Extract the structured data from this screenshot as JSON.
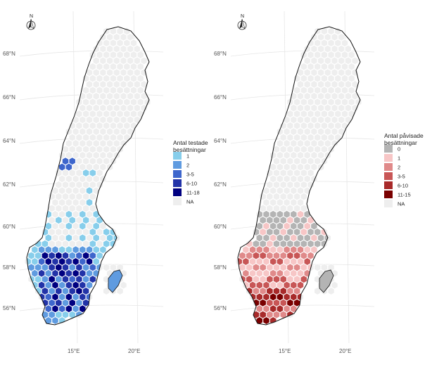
{
  "maps": [
    {
      "id": "tested",
      "legend_title": [
        "Antal testade",
        "besättningar"
      ],
      "legend": [
        {
          "label": "1",
          "color": "#87ceeb"
        },
        {
          "label": "2",
          "color": "#5f9be0"
        },
        {
          "label": "3-5",
          "color": "#3e66cc"
        },
        {
          "label": "6-10",
          "color": "#2233a8"
        },
        {
          "label": "11-18",
          "color": "#000080"
        },
        {
          "label": "NA",
          "color": "#eeeeee"
        }
      ],
      "latitudes": [
        "68°N",
        "66°N",
        "64°N",
        "62°N",
        "60°N",
        "58°N",
        "56°N"
      ],
      "longitudes": [
        "15°E",
        "20°E"
      ],
      "north_label": "N"
    },
    {
      "id": "detected",
      "legend_title": [
        "Antal påvisade",
        "besättningar"
      ],
      "legend": [
        {
          "label": "0",
          "color": "#b4b4b4"
        },
        {
          "label": "1",
          "color": "#f7c6c6"
        },
        {
          "label": "2",
          "color": "#e08a8a"
        },
        {
          "label": "3-5",
          "color": "#c85656"
        },
        {
          "label": "6-10",
          "color": "#a82a2a"
        },
        {
          "label": "11-15",
          "color": "#7a0000"
        },
        {
          "label": "NA",
          "color": "#eeeeee"
        }
      ],
      "latitudes": [
        "68°N",
        "66°N",
        "64°N",
        "62°N",
        "60°N",
        "58°N",
        "56°N"
      ],
      "longitudes": [
        "15°E",
        "20°E"
      ],
      "north_label": "N"
    }
  ]
}
